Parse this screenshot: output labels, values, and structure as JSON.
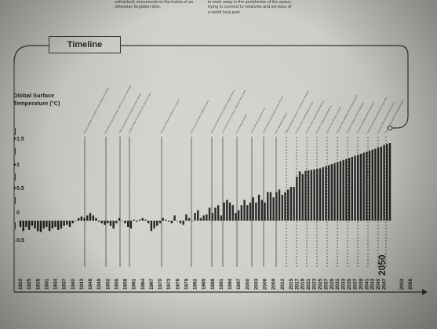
{
  "intro": {
    "left_text": "unfinished; monuments to the hubris of an otherwise forgotten time.",
    "right_text": "to work away in the peripheries of the space; trying to connect to networks and services of a world long past."
  },
  "timeline_title": "Timeline",
  "chart_data": {
    "type": "bar",
    "ylabel": "Global Surface Temperature (°C)",
    "yticks": [
      "+1.5",
      "+1",
      "+0.5",
      "0",
      "-0.5"
    ],
    "ylim": [
      -0.6,
      1.75
    ],
    "x_start": 1922,
    "x_end": 2049,
    "tick_years": [
      1922,
      1925,
      1928,
      1931,
      1934,
      1937,
      1940,
      1943,
      1946,
      1949,
      1952,
      1955,
      1958,
      1961,
      1964,
      1967,
      1970,
      1973,
      1976,
      1979,
      1982,
      1985,
      1988,
      1991,
      1994,
      1997,
      2000,
      2003,
      2006,
      2009,
      2012,
      2015,
      2017,
      2019,
      2021,
      2023,
      2025,
      2027,
      2029,
      2031,
      2033,
      2035,
      2037,
      2039,
      2041,
      2043,
      2045,
      2047,
      2050,
      2053,
      2056
    ],
    "highlight_year": "2050",
    "series": [
      {
        "values": [
          -0.12,
          -0.2,
          -0.12,
          -0.18,
          -0.1,
          -0.15,
          -0.2,
          -0.22,
          -0.15,
          -0.12,
          -0.2,
          -0.15,
          -0.12,
          -0.18,
          -0.15,
          -0.1,
          -0.08,
          -0.12,
          -0.05,
          0.0,
          0.05,
          0.08,
          0.05,
          0.1,
          0.15,
          0.1,
          0.05,
          -0.02,
          -0.05,
          -0.08,
          -0.05,
          -0.1,
          -0.15,
          -0.05,
          0.05,
          0.0,
          -0.05,
          -0.12,
          -0.15,
          0.02,
          -0.02,
          0.02,
          0.05,
          0.02,
          -0.05,
          -0.2,
          -0.15,
          -0.1,
          -0.05,
          0.05,
          0.02,
          -0.02,
          -0.05,
          0.1,
          0.0,
          -0.05,
          -0.08,
          0.12,
          0.05,
          0.0,
          0.15,
          0.2,
          0.05,
          0.1,
          0.12,
          0.25,
          0.15,
          0.25,
          0.3,
          0.1,
          0.35,
          0.4,
          0.35,
          0.3,
          0.15,
          0.2,
          0.3,
          0.4,
          0.3,
          0.35,
          0.45,
          0.35,
          0.5,
          0.4,
          0.35,
          0.55,
          0.55,
          0.45,
          0.55,
          0.6,
          0.5,
          0.55,
          0.6,
          0.65,
          0.65,
          0.85,
          0.95,
          0.9,
          0.96,
          0.97,
          0.98,
          0.99,
          1.0,
          1.01,
          1.03,
          1.05,
          1.07,
          1.09,
          1.11,
          1.13,
          1.15,
          1.17,
          1.19,
          1.21,
          1.23,
          1.25,
          1.27,
          1.29,
          1.31,
          1.33,
          1.35,
          1.37,
          1.39,
          1.41,
          1.43,
          1.46,
          1.48,
          1.5
        ]
      }
    ],
    "events": [
      "Human activities are thought to start affecting the climate",
      "End of the Second World War; start of the Great Acceleration",
      "First measurement of atmospheric carbon dioxide",
      "Carbon dioxide concentration rises above 320 ppm",
      "First World Climate Conference in Geneva",
      "NASA warns Congress of global warming",
      "Intergovernmental Panel on Climate Change founded",
      "UN Framework Convention on Climate Change signed",
      "Kyoto Protocol adopted",
      "Hottest decade on record so far",
      "Carbon dioxide concentration passes 400 ppm",
      "Paris Agreement adopted",
      "Global temperature passes 1 °C above pre-industrial",
      "Forecast: major coastal flooding events",
      "Forecast: Arctic summers largely ice-free",
      "Forecast: widespread crop failures",
      "Forecast: loss of most coral reefs",
      "Forecast: mass migration from low-lying regions",
      "Forecast: permafrost thaw accelerates",
      "Forecast: repeated extreme heatwaves",
      "Forecast: sea level rise threatens major cities",
      "Forecast: freshwater shortages spread",
      "Forecast: ecosystems cross tipping points",
      "Forecast: warming approaches 1.5 °C",
      "Forecast: carbon budget for 1.5 °C exhausted"
    ]
  }
}
